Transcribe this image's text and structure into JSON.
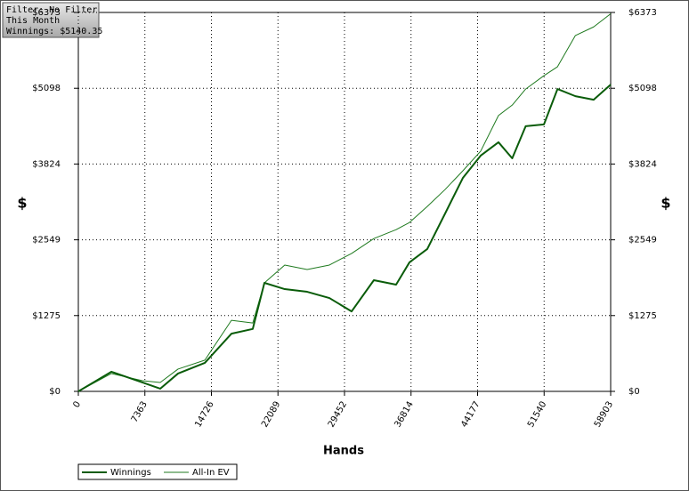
{
  "chart_data": {
    "type": "line",
    "annotations": [
      "Filter: No Filter",
      "This Month",
      "Winnings: $5140.35"
    ],
    "xlabel": "Hands",
    "ylabel": "$",
    "y2label": "$",
    "xlim": [
      0,
      58903
    ],
    "xticks": [
      0,
      7363,
      14726,
      22089,
      29452,
      36814,
      44177,
      51540,
      58903
    ],
    "ylim": [
      0,
      6373
    ],
    "yticks": [
      {
        "value": 0,
        "label": "$0"
      },
      {
        "value": 1275,
        "label": "$1275"
      },
      {
        "value": 2549,
        "label": "$2549"
      },
      {
        "value": 3824,
        "label": "$3824"
      },
      {
        "value": 5098,
        "label": "$5098"
      },
      {
        "value": 6373,
        "label": "$6373"
      }
    ],
    "grid": true,
    "legend": "bottom-left",
    "x": [
      0,
      3650,
      7090,
      9060,
      11030,
      14000,
      16940,
      19300,
      20590,
      22840,
      25320,
      27780,
      30240,
      32700,
      35160,
      36640,
      38610,
      40580,
      42550,
      44520,
      46490,
      48010,
      49500,
      51520,
      53020,
      55000,
      57020,
      58903
    ],
    "series": [
      {
        "name": "Winnings",
        "color": "#0a5c0a",
        "width": 2,
        "values": [
          0,
          330,
          150,
          45,
          300,
          480,
          970,
          1050,
          1825,
          1720,
          1675,
          1570,
          1345,
          1870,
          1795,
          2170,
          2395,
          2990,
          3590,
          3965,
          4190,
          3920,
          4460,
          4490,
          5085,
          4965,
          4905,
          5160
        ]
      },
      {
        "name": "All-In EV",
        "color": "#1f7a1f",
        "width": 1,
        "values": [
          0,
          300,
          180,
          150,
          375,
          525,
          1195,
          1150,
          1825,
          2125,
          2050,
          2125,
          2320,
          2570,
          2720,
          2840,
          3110,
          3395,
          3710,
          4040,
          4640,
          4815,
          5085,
          5310,
          5460,
          5985,
          6130,
          6350
        ]
      }
    ]
  }
}
